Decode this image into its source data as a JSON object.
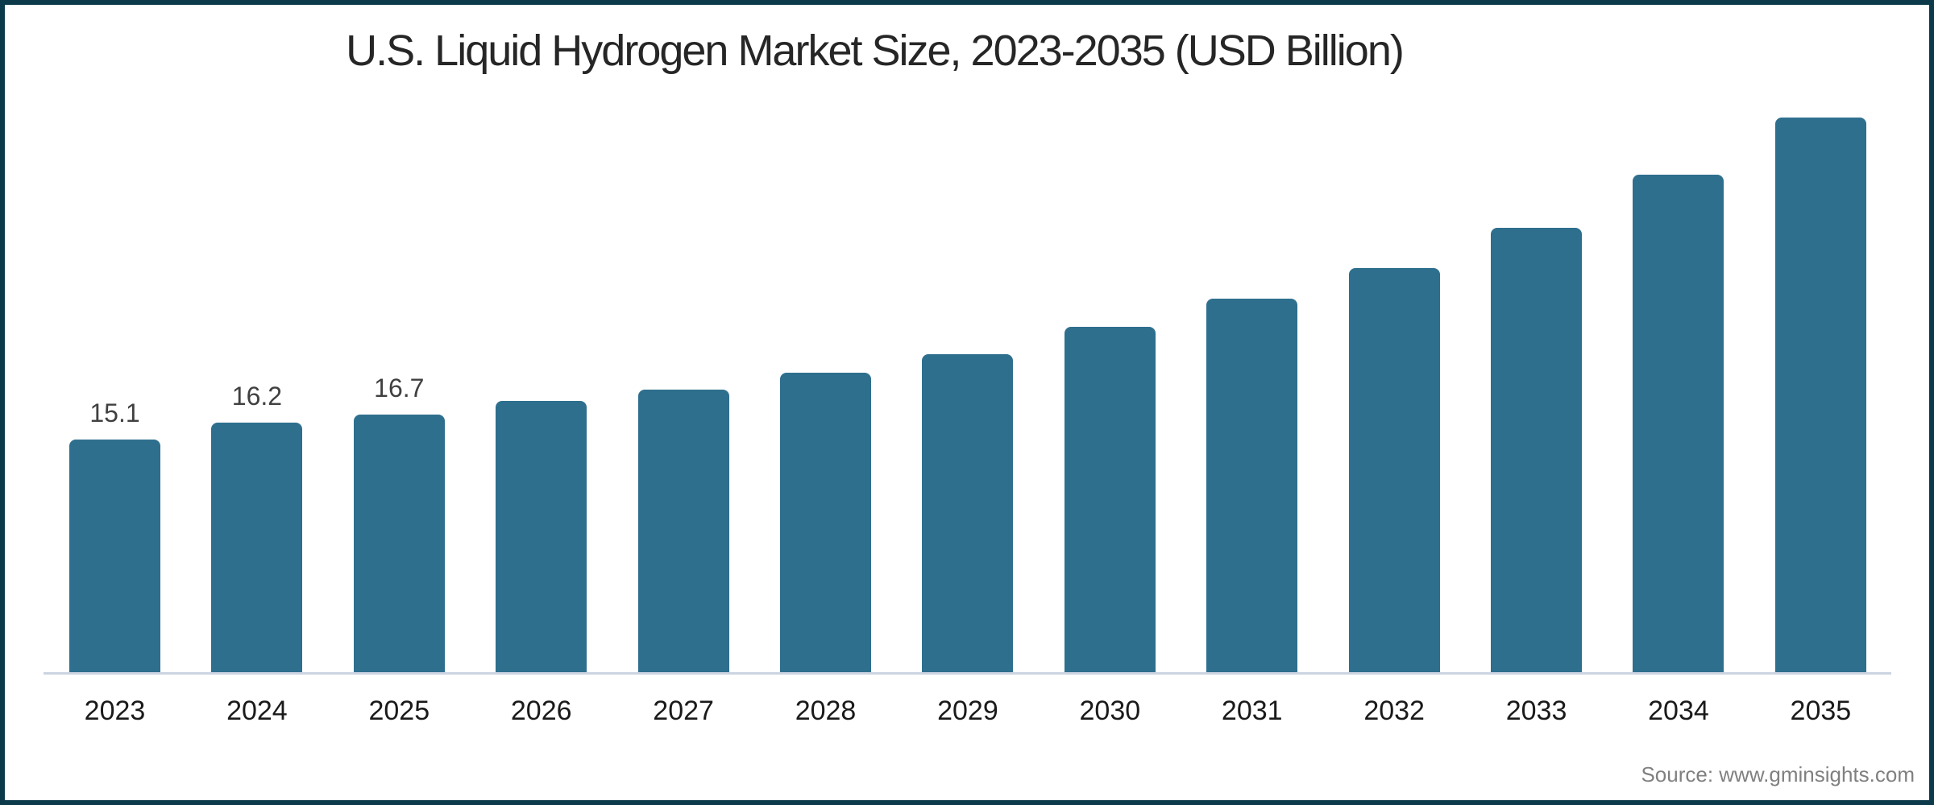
{
  "title": "U.S. Liquid Hydrogen Market Size, 2023-2035 (USD Billion)",
  "source": {
    "text": "Source: www.gminsights.com"
  },
  "colors": {
    "bar": "#2E6F8E",
    "frame_border": "#0C3A4B",
    "axis_line": "#CCD4E2",
    "title_text": "#262626",
    "value_label_text": "#404040",
    "year_label_text": "#1A1A1A",
    "source_text": "#808080"
  },
  "chart_data": {
    "type": "bar",
    "title": "U.S. Liquid Hydrogen Market Size, 2023-2035 (USD Billion)",
    "categories": [
      "2023",
      "2024",
      "2025",
      "2026",
      "2027",
      "2028",
      "2029",
      "2030",
      "2031",
      "2032",
      "2033",
      "2034",
      "2035"
    ],
    "values": [
      15.1,
      16.2,
      16.7,
      17.6,
      18.3,
      19.4,
      20.6,
      22.4,
      24.2,
      26.2,
      28.8,
      32.2,
      35.9
    ],
    "data_labels": [
      "15.1",
      "16.2",
      "16.7",
      null,
      null,
      null,
      null,
      null,
      null,
      null,
      null,
      null,
      null
    ],
    "xlabel": "",
    "ylabel": "",
    "ylim": [
      0,
      43.2
    ],
    "grid": false,
    "legend": false,
    "y_axis_visible": false,
    "bar_color": "#2E6F8E",
    "source": "Source: www.gminsights.com"
  }
}
